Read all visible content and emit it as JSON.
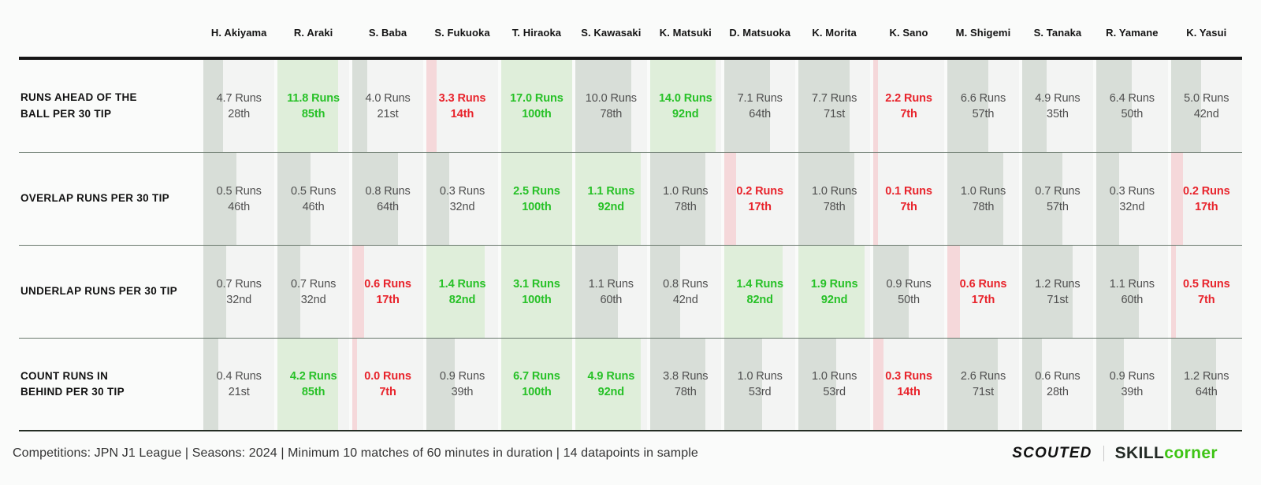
{
  "players": [
    "H. Akiyama",
    "R. Araki",
    "S. Baba",
    "S. Fukuoka",
    "T. Hiraoka",
    "S. Kawasaki",
    "K. Matsuki",
    "D. Matsuoka",
    "K. Morita",
    "K. Sano",
    "M. Shigemi",
    "S. Tanaka",
    "R. Yamane",
    "K. Yasui"
  ],
  "rows": [
    {
      "label": "RUNS AHEAD OF THE\nBALL PER 30 TIP",
      "cells": [
        {
          "value": "4.7 Runs",
          "percentile": "28th",
          "pct": 28,
          "tone": "neutral"
        },
        {
          "value": "11.8 Runs",
          "percentile": "85th",
          "pct": 85,
          "tone": "good"
        },
        {
          "value": "4.0 Runs",
          "percentile": "21st",
          "pct": 21,
          "tone": "neutral"
        },
        {
          "value": "3.3 Runs",
          "percentile": "14th",
          "pct": 14,
          "tone": "bad"
        },
        {
          "value": "17.0 Runs",
          "percentile": "100th",
          "pct": 100,
          "tone": "good"
        },
        {
          "value": "10.0 Runs",
          "percentile": "78th",
          "pct": 78,
          "tone": "neutral"
        },
        {
          "value": "14.0 Runs",
          "percentile": "92nd",
          "pct": 92,
          "tone": "good"
        },
        {
          "value": "7.1 Runs",
          "percentile": "64th",
          "pct": 64,
          "tone": "neutral"
        },
        {
          "value": "7.7 Runs",
          "percentile": "71st",
          "pct": 71,
          "tone": "neutral"
        },
        {
          "value": "2.2 Runs",
          "percentile": "7th",
          "pct": 7,
          "tone": "bad"
        },
        {
          "value": "6.6 Runs",
          "percentile": "57th",
          "pct": 57,
          "tone": "neutral"
        },
        {
          "value": "4.9 Runs",
          "percentile": "35th",
          "pct": 35,
          "tone": "neutral"
        },
        {
          "value": "6.4 Runs",
          "percentile": "50th",
          "pct": 50,
          "tone": "neutral"
        },
        {
          "value": "5.0 Runs",
          "percentile": "42nd",
          "pct": 42,
          "tone": "neutral"
        }
      ]
    },
    {
      "label": "OVERLAP RUNS PER 30 TIP",
      "cells": [
        {
          "value": "0.5 Runs",
          "percentile": "46th",
          "pct": 46,
          "tone": "neutral"
        },
        {
          "value": "0.5 Runs",
          "percentile": "46th",
          "pct": 46,
          "tone": "neutral"
        },
        {
          "value": "0.8 Runs",
          "percentile": "64th",
          "pct": 64,
          "tone": "neutral"
        },
        {
          "value": "0.3 Runs",
          "percentile": "32nd",
          "pct": 32,
          "tone": "neutral"
        },
        {
          "value": "2.5 Runs",
          "percentile": "100th",
          "pct": 100,
          "tone": "good"
        },
        {
          "value": "1.1 Runs",
          "percentile": "92nd",
          "pct": 92,
          "tone": "good"
        },
        {
          "value": "1.0 Runs",
          "percentile": "78th",
          "pct": 78,
          "tone": "neutral"
        },
        {
          "value": "0.2 Runs",
          "percentile": "17th",
          "pct": 17,
          "tone": "bad"
        },
        {
          "value": "1.0 Runs",
          "percentile": "78th",
          "pct": 78,
          "tone": "neutral"
        },
        {
          "value": "0.1 Runs",
          "percentile": "7th",
          "pct": 7,
          "tone": "bad"
        },
        {
          "value": "1.0 Runs",
          "percentile": "78th",
          "pct": 78,
          "tone": "neutral"
        },
        {
          "value": "0.7 Runs",
          "percentile": "57th",
          "pct": 57,
          "tone": "neutral"
        },
        {
          "value": "0.3 Runs",
          "percentile": "32nd",
          "pct": 32,
          "tone": "neutral"
        },
        {
          "value": "0.2 Runs",
          "percentile": "17th",
          "pct": 17,
          "tone": "bad"
        }
      ]
    },
    {
      "label": "UNDERLAP RUNS PER 30 TIP",
      "cells": [
        {
          "value": "0.7 Runs",
          "percentile": "32nd",
          "pct": 32,
          "tone": "neutral"
        },
        {
          "value": "0.7 Runs",
          "percentile": "32nd",
          "pct": 32,
          "tone": "neutral"
        },
        {
          "value": "0.6 Runs",
          "percentile": "17th",
          "pct": 17,
          "tone": "bad"
        },
        {
          "value": "1.4 Runs",
          "percentile": "82nd",
          "pct": 82,
          "tone": "good"
        },
        {
          "value": "3.1 Runs",
          "percentile": "100th",
          "pct": 100,
          "tone": "good"
        },
        {
          "value": "1.1 Runs",
          "percentile": "60th",
          "pct": 60,
          "tone": "neutral"
        },
        {
          "value": "0.8 Runs",
          "percentile": "42nd",
          "pct": 42,
          "tone": "neutral"
        },
        {
          "value": "1.4 Runs",
          "percentile": "82nd",
          "pct": 82,
          "tone": "good"
        },
        {
          "value": "1.9 Runs",
          "percentile": "92nd",
          "pct": 92,
          "tone": "good"
        },
        {
          "value": "0.9 Runs",
          "percentile": "50th",
          "pct": 50,
          "tone": "neutral"
        },
        {
          "value": "0.6 Runs",
          "percentile": "17th",
          "pct": 17,
          "tone": "bad"
        },
        {
          "value": "1.2 Runs",
          "percentile": "71st",
          "pct": 71,
          "tone": "neutral"
        },
        {
          "value": "1.1 Runs",
          "percentile": "60th",
          "pct": 60,
          "tone": "neutral"
        },
        {
          "value": "0.5 Runs",
          "percentile": "7th",
          "pct": 7,
          "tone": "bad"
        }
      ]
    },
    {
      "label": "COUNT RUNS IN\nBEHIND PER 30 TIP",
      "cells": [
        {
          "value": "0.4 Runs",
          "percentile": "21st",
          "pct": 21,
          "tone": "neutral"
        },
        {
          "value": "4.2 Runs",
          "percentile": "85th",
          "pct": 85,
          "tone": "good"
        },
        {
          "value": "0.0 Runs",
          "percentile": "7th",
          "pct": 7,
          "tone": "bad"
        },
        {
          "value": "0.9 Runs",
          "percentile": "39th",
          "pct": 39,
          "tone": "neutral"
        },
        {
          "value": "6.7 Runs",
          "percentile": "100th",
          "pct": 100,
          "tone": "good"
        },
        {
          "value": "4.9 Runs",
          "percentile": "92nd",
          "pct": 92,
          "tone": "good"
        },
        {
          "value": "3.8 Runs",
          "percentile": "78th",
          "pct": 78,
          "tone": "neutral"
        },
        {
          "value": "1.0 Runs",
          "percentile": "53rd",
          "pct": 53,
          "tone": "neutral"
        },
        {
          "value": "1.0 Runs",
          "percentile": "53rd",
          "pct": 53,
          "tone": "neutral"
        },
        {
          "value": "0.3 Runs",
          "percentile": "14th",
          "pct": 14,
          "tone": "bad"
        },
        {
          "value": "2.6 Runs",
          "percentile": "71st",
          "pct": 71,
          "tone": "neutral"
        },
        {
          "value": "0.6 Runs",
          "percentile": "28th",
          "pct": 28,
          "tone": "neutral"
        },
        {
          "value": "0.9 Runs",
          "percentile": "39th",
          "pct": 39,
          "tone": "neutral"
        },
        {
          "value": "1.2 Runs",
          "percentile": "64th",
          "pct": 64,
          "tone": "neutral"
        }
      ]
    }
  ],
  "footer": {
    "note": "Competitions: JPN J1 League | Seasons: 2024 | Minimum 10 matches of 60 minutes in duration | 14 datapoints in sample",
    "scouted": "SCOUTED",
    "skill": "SKILL",
    "corner": "corner"
  },
  "colors": {
    "good_fill": "#dfeeda",
    "good_text": "#27c127",
    "bad_fill": "#f5d8da",
    "bad_text": "#e8232b",
    "neutral_fill": "#d8ded8",
    "neutral_text": "#4f4f4f",
    "header_line": "#161616",
    "row_divider": "#6a796d",
    "logo_green": "#3ec414"
  },
  "chart_data": {
    "type": "table",
    "columns": [
      "H. Akiyama",
      "R. Araki",
      "S. Baba",
      "S. Fukuoka",
      "T. Hiraoka",
      "S. Kawasaki",
      "K. Matsuki",
      "D. Matsuoka",
      "K. Morita",
      "K. Sano",
      "M. Shigemi",
      "S. Tanaka",
      "R. Yamane",
      "K. Yasui"
    ],
    "rows": [
      {
        "metric": "Runs ahead of the ball per 30 TIP",
        "values": [
          4.7,
          11.8,
          4.0,
          3.3,
          17.0,
          10.0,
          14.0,
          7.1,
          7.7,
          2.2,
          6.6,
          4.9,
          6.4,
          5.0
        ],
        "percentiles": [
          28,
          85,
          21,
          14,
          100,
          78,
          92,
          64,
          71,
          7,
          57,
          35,
          50,
          42
        ]
      },
      {
        "metric": "Overlap runs per 30 TIP",
        "values": [
          0.5,
          0.5,
          0.8,
          0.3,
          2.5,
          1.1,
          1.0,
          0.2,
          1.0,
          0.1,
          1.0,
          0.7,
          0.3,
          0.2
        ],
        "percentiles": [
          46,
          46,
          64,
          32,
          100,
          92,
          78,
          17,
          78,
          7,
          78,
          57,
          32,
          17
        ]
      },
      {
        "metric": "Underlap runs per 30 TIP",
        "values": [
          0.7,
          0.7,
          0.6,
          1.4,
          3.1,
          1.1,
          0.8,
          1.4,
          1.9,
          0.9,
          0.6,
          1.2,
          1.1,
          0.5
        ],
        "percentiles": [
          32,
          32,
          17,
          82,
          100,
          60,
          42,
          82,
          92,
          50,
          17,
          71,
          60,
          7
        ]
      },
      {
        "metric": "Count runs in behind per 30 TIP",
        "values": [
          0.4,
          4.2,
          0.0,
          0.9,
          6.7,
          4.9,
          3.8,
          1.0,
          1.0,
          0.3,
          2.6,
          0.6,
          0.9,
          1.2
        ],
        "percentiles": [
          21,
          85,
          7,
          39,
          100,
          92,
          78,
          53,
          53,
          14,
          71,
          28,
          39,
          64
        ]
      }
    ],
    "units": "Runs",
    "encoding": "cell bar width = percentile; green fill/text = high percentile, red fill/text = low percentile, grey = mid"
  }
}
